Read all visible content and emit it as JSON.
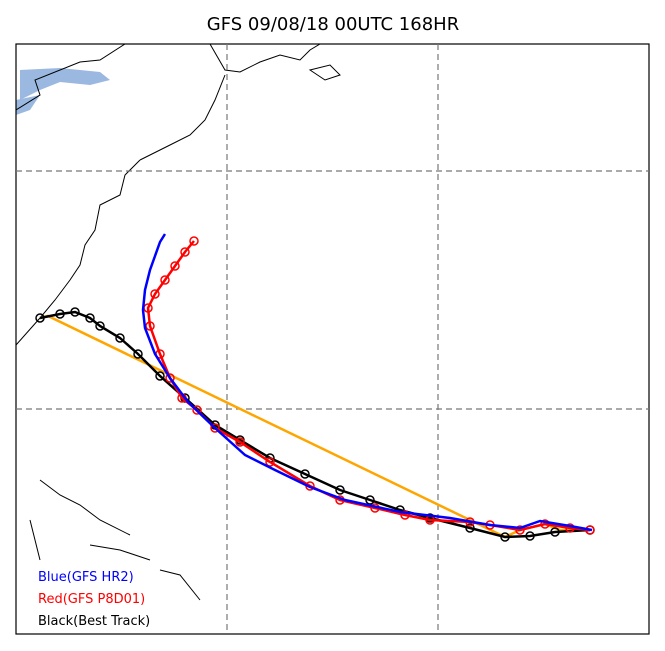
{
  "title": "GFS 09/08/18 00UTC 168HR",
  "legend": [
    "Blue(GFS HR2)",
    "Red(GFS P8D01)",
    "Black(Best Track)"
  ]
}
